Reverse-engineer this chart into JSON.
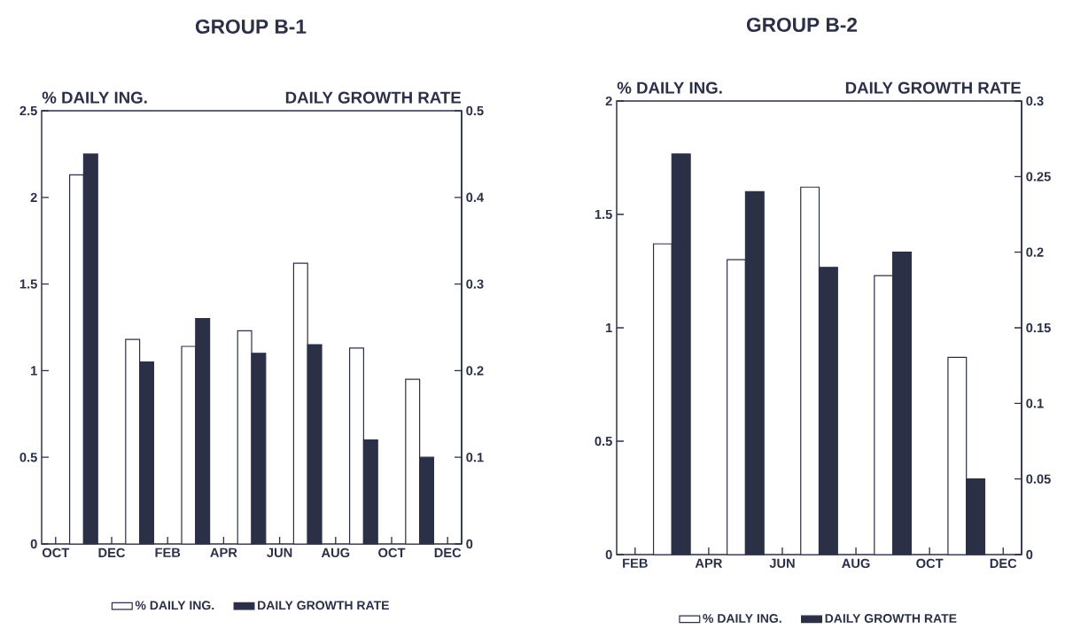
{
  "chart_data": [
    {
      "type": "bar",
      "title": "GROUP B-1",
      "ylabel": "% DAILY ING.",
      "y2label": "DAILY GROWTH RATE",
      "categories": [
        "OCT",
        null,
        "DEC",
        null,
        "FEB",
        null,
        "APR",
        null,
        "JUN",
        null,
        "AUG",
        null,
        "OCT",
        null,
        "DEC"
      ],
      "series": [
        {
          "name": "% DAILY ING.",
          "color": "#ffffff",
          "values": [
            null,
            2.13,
            null,
            1.18,
            null,
            1.14,
            null,
            1.23,
            null,
            1.62,
            null,
            1.13,
            null,
            0.95,
            null
          ]
        },
        {
          "name": "DAILY GROWTH RATE",
          "color": "#2b3047",
          "axis": "y2",
          "values": [
            null,
            0.45,
            null,
            0.21,
            null,
            0.26,
            null,
            0.22,
            null,
            0.23,
            null,
            0.12,
            null,
            0.1,
            null
          ]
        }
      ],
      "ylim": [
        0,
        2.5
      ],
      "yticks": [
        0,
        0.5,
        1,
        1.5,
        2,
        2.5
      ],
      "y2lim": [
        0,
        0.5
      ],
      "y2ticks": [
        0,
        0.1,
        0.2,
        0.3,
        0.4,
        0.5
      ],
      "legend": "bottom"
    },
    {
      "type": "bar",
      "title": "GROUP B-2",
      "ylabel": "% DAILY ING.",
      "y2label": "DAILY GROWTH RATE",
      "categories": [
        "FEB",
        null,
        "APR",
        null,
        "JUN",
        null,
        "AUG",
        null,
        "OCT",
        null,
        "DEC"
      ],
      "series": [
        {
          "name": "% DAILY ING.",
          "color": "#ffffff",
          "values": [
            null,
            1.37,
            null,
            1.3,
            null,
            1.62,
            null,
            1.23,
            null,
            0.87,
            null
          ]
        },
        {
          "name": "DAILY GROWTH RATE",
          "color": "#2b3047",
          "axis": "y2",
          "values": [
            null,
            0.265,
            null,
            0.24,
            null,
            0.19,
            null,
            0.2,
            null,
            0.05,
            null
          ]
        }
      ],
      "ylim": [
        0,
        2
      ],
      "yticks": [
        0,
        0.5,
        1,
        1.5,
        2
      ],
      "y2lim": [
        0,
        0.3
      ],
      "y2ticks": [
        0,
        0.05,
        0.1,
        0.15,
        0.2,
        0.25,
        0.3
      ],
      "legend": "bottom"
    }
  ]
}
